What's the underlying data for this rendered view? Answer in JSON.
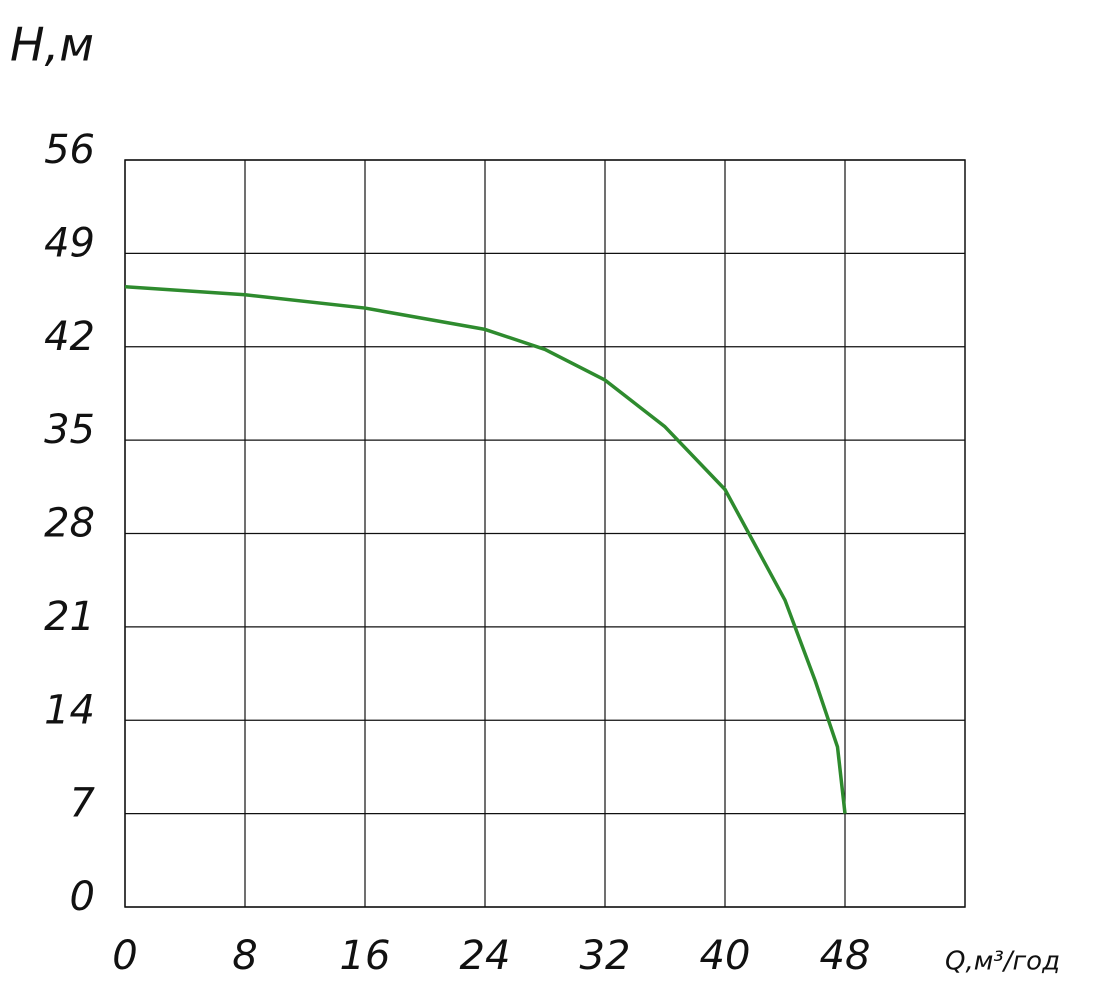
{
  "chart_data": {
    "type": "line",
    "y_label": "H,м",
    "x_label": "Q,м³/год",
    "x": [
      0,
      8,
      16,
      24,
      28,
      32,
      36,
      40,
      44,
      46,
      47.5,
      48
    ],
    "series": [
      {
        "color": "#2e8b2e",
        "values": [
          46.5,
          45.9,
          44.9,
          43.3,
          41.8,
          39.5,
          36,
          31.3,
          23,
          17,
          12,
          7
        ]
      }
    ],
    "xlim": [
      0,
      56
    ],
    "ylim": [
      0,
      56
    ],
    "xticks": [
      0,
      8,
      16,
      24,
      32,
      40,
      48
    ],
    "yticks": [
      0,
      7,
      14,
      21,
      28,
      35,
      42,
      49,
      56
    ],
    "grid": true
  }
}
